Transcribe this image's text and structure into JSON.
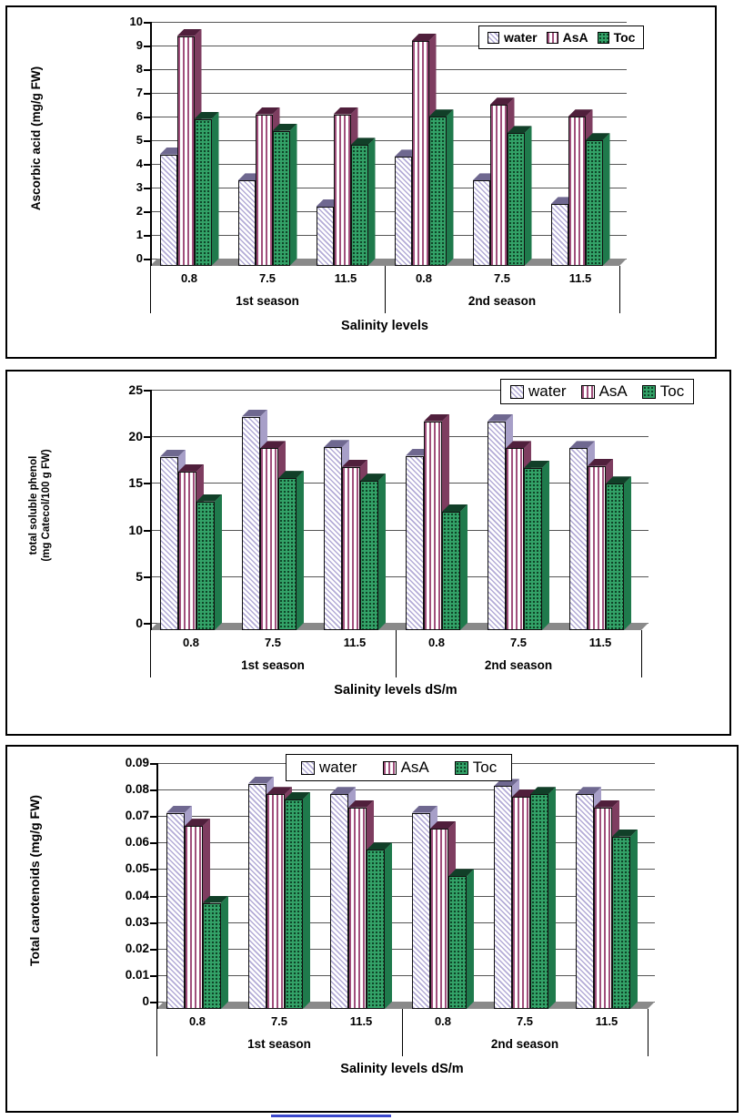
{
  "colors": {
    "water_stripe": "#b3abd6",
    "water_side": "#a79fc8",
    "water_top": "#6f6890",
    "asa_stripe": "#a04f7c",
    "asa_side": "#7e3d60",
    "asa_top": "#501f3c",
    "toc_bg": "#33a268",
    "toc_dot": "#0d3f24",
    "toc_side": "#1f7a4c",
    "toc_top": "#113f28",
    "floor": "#8a8a8a",
    "grid": "#555555",
    "axis": "#000000",
    "footer_line": "#3b48cc"
  },
  "chart_data": [
    {
      "type": "bar",
      "title": "",
      "ylabel": "Ascorbic acid (mg/g FW)",
      "xlabel": "Salinity levels",
      "ylim": [
        0,
        10
      ],
      "yticks": [
        0,
        1,
        2,
        3,
        4,
        5,
        6,
        7,
        8,
        9,
        10
      ],
      "ytick_labels": [
        "0",
        "1",
        "2",
        "3",
        "4",
        "5",
        "6",
        "7",
        "8",
        "9",
        "10"
      ],
      "categories": [
        "0.8",
        "7.5",
        "11.5",
        "0.8",
        "7.5",
        "11.5"
      ],
      "group_labels": [
        "1st season",
        "2nd season"
      ],
      "legend": [
        "water",
        "AsA",
        "Toc"
      ],
      "legend_position": "top-right",
      "grid": true,
      "series": [
        {
          "name": "water",
          "values": [
            4.7,
            3.6,
            2.5,
            4.6,
            3.6,
            2.6
          ]
        },
        {
          "name": "AsA",
          "values": [
            9.7,
            6.4,
            6.4,
            9.5,
            6.8,
            6.3
          ]
        },
        {
          "name": "Toc",
          "values": [
            6.2,
            5.7,
            5.1,
            6.3,
            5.6,
            5.3
          ]
        }
      ]
    },
    {
      "type": "bar",
      "title": "",
      "ylabel": "total soluble phenol\n(mg Catecol/100 g FW)",
      "xlabel": "Salinity levels dS/m",
      "ylim": [
        0,
        25
      ],
      "yticks": [
        0,
        5,
        10,
        15,
        20,
        25
      ],
      "ytick_labels": [
        "0",
        "5",
        "10",
        "15",
        "20",
        "25"
      ],
      "categories": [
        "0.8",
        "7.5",
        "11.5",
        "0.8",
        "7.5",
        "11.5"
      ],
      "group_labels": [
        "1st season",
        "2nd season"
      ],
      "legend": [
        "water",
        "AsA",
        "Toc"
      ],
      "legend_position": "top-right",
      "grid": true,
      "series": [
        {
          "name": "water",
          "values": [
            18.6,
            22.9,
            19.6,
            18.7,
            22.4,
            19.5
          ]
        },
        {
          "name": "AsA",
          "values": [
            17.0,
            19.5,
            17.5,
            22.4,
            19.5,
            17.6
          ]
        },
        {
          "name": "Toc",
          "values": [
            13.8,
            16.3,
            16.0,
            12.7,
            17.4,
            15.7
          ]
        }
      ]
    },
    {
      "type": "bar",
      "title": "",
      "ylabel": "Total carotenoids  (mg/g FW)",
      "xlabel": "Salinity levels dS/m",
      "ylim": [
        0,
        0.09
      ],
      "yticks": [
        0,
        0.01,
        0.02,
        0.03,
        0.04,
        0.05,
        0.06,
        0.07,
        0.08,
        0.09
      ],
      "ytick_labels": [
        "0",
        "0.01",
        "0.02",
        "0.03",
        "0.04",
        "0.05",
        "0.06",
        "0.07",
        "0.08",
        "0.09"
      ],
      "categories": [
        "0.8",
        "7.5",
        "11.5",
        "0.8",
        "7.5",
        "11.5"
      ],
      "group_labels": [
        "1st season",
        "2nd season"
      ],
      "legend": [
        "water",
        "AsA",
        "Toc"
      ],
      "legend_position": "top-center",
      "grid": true,
      "series": [
        {
          "name": "water",
          "values": [
            0.074,
            0.085,
            0.081,
            0.074,
            0.084,
            0.081
          ]
        },
        {
          "name": "AsA",
          "values": [
            0.069,
            0.081,
            0.076,
            0.068,
            0.08,
            0.076
          ]
        },
        {
          "name": "Toc",
          "values": [
            0.04,
            0.079,
            0.06,
            0.05,
            0.081,
            0.065
          ]
        }
      ]
    }
  ]
}
